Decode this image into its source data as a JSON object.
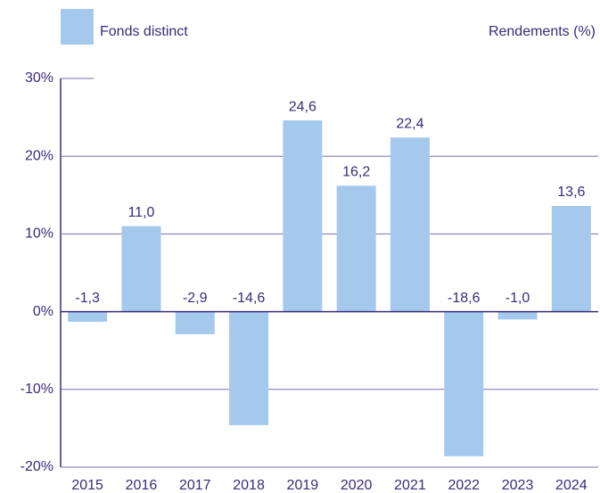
{
  "chart_data": {
    "type": "bar",
    "legend_label": "Fonds distinct",
    "y_axis_label": "Rendements (%)",
    "categories": [
      "2015",
      "2016",
      "2017",
      "2018",
      "2019",
      "2020",
      "2021",
      "2022",
      "2023",
      "2024"
    ],
    "values": [
      -1.3,
      11.0,
      -2.9,
      -14.6,
      24.6,
      16.2,
      22.4,
      -18.6,
      -1.0,
      13.6
    ],
    "value_labels": [
      "-1,3",
      "11,0",
      "-2,9",
      "-14,6",
      "24,6",
      "16,2",
      "22,4",
      "-18,6",
      "-1,0",
      "13,6"
    ],
    "color": "#a4c9ed",
    "ylim": [
      -20,
      30
    ],
    "yticks": [
      {
        "value": -20,
        "label": "-20%"
      },
      {
        "value": -10,
        "label": "-10%"
      },
      {
        "value": 0,
        "label": "0%"
      },
      {
        "value": 10,
        "label": "10%"
      },
      {
        "value": 20,
        "label": "20%"
      },
      {
        "value": 30,
        "label": "30%"
      }
    ],
    "grid": true
  }
}
